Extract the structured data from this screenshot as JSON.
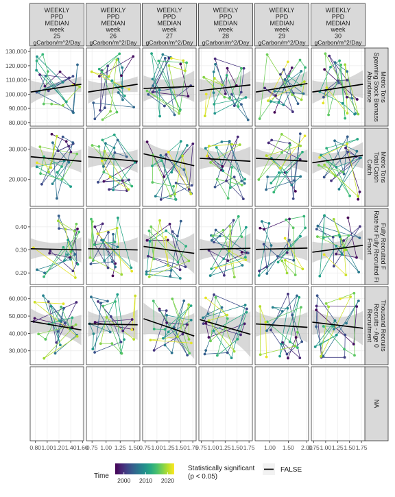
{
  "chart_data": {
    "type": "scatter",
    "column_headers": [
      [
        "WEEKLY",
        "PPD",
        "MEDIAN",
        "week",
        "25",
        "gCarbon/m^2/Day"
      ],
      [
        "WEEKLY",
        "PPD",
        "MEDIAN",
        "week",
        "26",
        "gCarbon/m^2/Day"
      ],
      [
        "WEEKLY",
        "PPD",
        "MEDIAN",
        "week",
        "27",
        "gCarbon/m^2/Day"
      ],
      [
        "WEEKLY",
        "PPD",
        "MEDIAN",
        "week",
        "28",
        "gCarbon/m^2/Day"
      ],
      [
        "WEEKLY",
        "PPD",
        "MEDIAN",
        "week",
        "29",
        "gCarbon/m^2/Day"
      ],
      [
        "WEEKLY",
        "PPD",
        "MEDIAN",
        "week",
        "30",
        "gCarbon/m^2/Day"
      ]
    ],
    "row_headers": [
      [
        "Abundance",
        "Spawning Stock Biomass",
        "Metric Tons"
      ],
      [
        "Catch",
        "Total Catch",
        "Metric Tons"
      ],
      [
        "Fmort",
        "Rate for Fully Recruited Fi",
        "Fully Recruited F"
      ],
      [
        "Recruitment",
        "Recruits - Age 0",
        "Thousand Recruits"
      ],
      [
        "NA"
      ]
    ],
    "x_axes": [
      {
        "ticks": [
          0.8,
          1.0,
          1.2,
          1.4,
          1.6
        ],
        "labels": [
          "0.80",
          "1.00",
          "1.20",
          "1.40",
          "1.60"
        ],
        "range": [
          0.71,
          1.62
        ]
      },
      {
        "ticks": [
          0.75,
          1.0,
          1.25,
          1.5
        ],
        "labels": [
          "0.75",
          "1.00",
          "1.25",
          "1.50"
        ],
        "range": [
          0.65,
          1.6
        ]
      },
      {
        "ticks": [
          0.75,
          1.0,
          1.25,
          1.5,
          1.75
        ],
        "labels": [
          "0.75",
          "1.00",
          "1.25",
          "1.50",
          "1.75"
        ],
        "range": [
          0.7,
          1.82
        ]
      },
      {
        "ticks": [
          0.75,
          1.0,
          1.25,
          1.5,
          1.75
        ],
        "labels": [
          "0.75",
          "1.00",
          "1.25",
          "1.50",
          "1.75"
        ],
        "range": [
          0.7,
          1.82
        ]
      },
      {
        "ticks": [
          1.0,
          1.5,
          2.0
        ],
        "labels": [
          "1.00",
          "1.50",
          "2.00"
        ],
        "range": [
          0.6,
          2.05
        ]
      },
      {
        "ticks": [
          0.75,
          1.0,
          1.25,
          1.5,
          1.75
        ],
        "labels": [
          "0.75",
          "1.00",
          "1.25",
          "1.50",
          "1.75"
        ],
        "range": [
          0.7,
          1.82
        ]
      }
    ],
    "y_axes": [
      {
        "ticks": [
          80000,
          90000,
          100000,
          110000,
          120000,
          130000
        ],
        "labels": [
          "80,000",
          "90,000",
          "100,000",
          "110,000",
          "120,000",
          "130,000"
        ],
        "range": [
          77500,
          132500
        ]
      },
      {
        "ticks": [
          20000,
          30000
        ],
        "labels": [
          "20,000",
          "30,000"
        ],
        "range": [
          11000,
          37000
        ]
      },
      {
        "ticks": [
          0.2,
          0.3,
          0.4
        ],
        "labels": [
          "0.20",
          "0.30",
          "0.40"
        ],
        "range": [
          0.15,
          0.48
        ]
      },
      {
        "ticks": [
          30000,
          40000,
          50000,
          60000
        ],
        "labels": [
          "30,000",
          "40,000",
          "50,000",
          "60,000"
        ],
        "range": [
          22000,
          67000
        ]
      }
    ],
    "trend_lines": [
      [
        [
          [
            0.72,
            101500
          ],
          [
            1.58,
            107000
          ]
        ],
        [
          [
            0.68,
            101500
          ],
          [
            1.56,
            107000
          ]
        ],
        [
          [
            0.72,
            104000
          ],
          [
            1.78,
            105500
          ]
        ],
        [
          [
            0.72,
            102500
          ],
          [
            1.78,
            106500
          ]
        ],
        [
          [
            0.62,
            101500
          ],
          [
            2.02,
            107500
          ]
        ],
        [
          [
            0.72,
            101500
          ],
          [
            1.78,
            107000
          ]
        ]
      ],
      [
        [
          [
            0.72,
            27500
          ],
          [
            1.58,
            26000
          ]
        ],
        [
          [
            0.68,
            27500
          ],
          [
            1.56,
            26000
          ]
        ],
        [
          [
            0.72,
            28500
          ],
          [
            1.78,
            24500
          ]
        ],
        [
          [
            0.72,
            27000
          ],
          [
            1.78,
            26000
          ]
        ],
        [
          [
            0.62,
            27000
          ],
          [
            2.02,
            26000
          ]
        ],
        [
          [
            0.72,
            25500
          ],
          [
            1.78,
            28000
          ]
        ]
      ],
      [
        [
          [
            0.72,
            0.305
          ],
          [
            1.58,
            0.3
          ]
        ],
        [
          [
            0.68,
            0.305
          ],
          [
            1.56,
            0.3
          ]
        ],
        [
          [
            0.72,
            0.315
          ],
          [
            1.78,
            0.285
          ]
        ],
        [
          [
            0.72,
            0.302
          ],
          [
            1.78,
            0.307
          ]
        ],
        [
          [
            0.62,
            0.302
          ],
          [
            2.02,
            0.308
          ]
        ],
        [
          [
            0.72,
            0.29
          ],
          [
            1.78,
            0.32
          ]
        ]
      ],
      [
        [
          [
            0.72,
            47000
          ],
          [
            1.58,
            42000
          ]
        ],
        [
          [
            0.68,
            45500
          ],
          [
            1.56,
            45000
          ]
        ],
        [
          [
            0.72,
            48500
          ],
          [
            1.78,
            38500
          ]
        ],
        [
          [
            0.72,
            48000
          ],
          [
            1.78,
            39500
          ]
        ],
        [
          [
            0.62,
            45500
          ],
          [
            2.02,
            43500
          ]
        ],
        [
          [
            0.72,
            46500
          ],
          [
            1.78,
            43000
          ]
        ]
      ]
    ],
    "ribbon_halfwidths": [
      [
        [
          9000,
          5000
        ],
        [
          9000,
          5000
        ],
        [
          10000,
          10000
        ],
        [
          9000,
          9000
        ],
        [
          8000,
          8000
        ],
        [
          9000,
          9000
        ]
      ],
      [
        [
          4000,
          3500
        ],
        [
          4000,
          3500
        ],
        [
          5000,
          6000
        ],
        [
          4000,
          4500
        ],
        [
          3500,
          3500
        ],
        [
          4000,
          4000
        ]
      ],
      [
        [
          0.05,
          0.05
        ],
        [
          0.05,
          0.05
        ],
        [
          0.06,
          0.08
        ],
        [
          0.05,
          0.06
        ],
        [
          0.05,
          0.05
        ],
        [
          0.05,
          0.06
        ]
      ],
      [
        [
          8000,
          8000
        ],
        [
          8000,
          8000
        ],
        [
          10000,
          12000
        ],
        [
          9000,
          12000
        ],
        [
          8000,
          8000
        ],
        [
          8000,
          9000
        ]
      ]
    ],
    "colorbar": {
      "title": "Time",
      "ticks": [
        "2000",
        "2010",
        "2020"
      ],
      "range": [
        1996,
        2023
      ]
    },
    "legend": {
      "title_line1": "Statistically significant",
      "title_line2": "(p < 0.05)",
      "entry": "FALSE"
    },
    "grid": true,
    "ribbon_color": "#bebebe",
    "trend_color": "#000000",
    "strip_fill": "#d9d9d9"
  }
}
